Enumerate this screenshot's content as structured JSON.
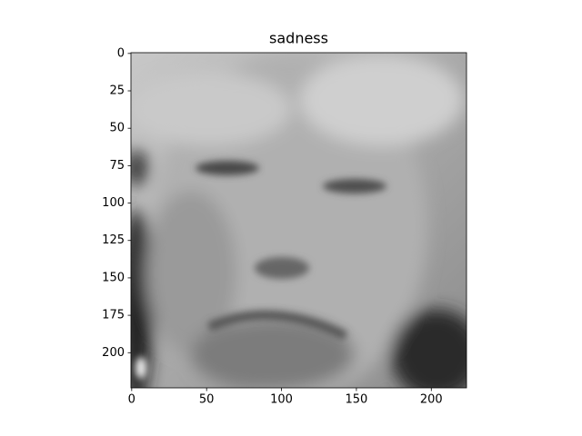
{
  "chart_data": {
    "type": "image",
    "title": "sadness",
    "xlim": [
      -0.5,
      223.5
    ],
    "ylim": [
      223.5,
      -0.5
    ],
    "xticks": [
      0,
      50,
      100,
      150,
      200
    ],
    "yticks": [
      0,
      25,
      50,
      75,
      100,
      125,
      150,
      175,
      200
    ]
  }
}
